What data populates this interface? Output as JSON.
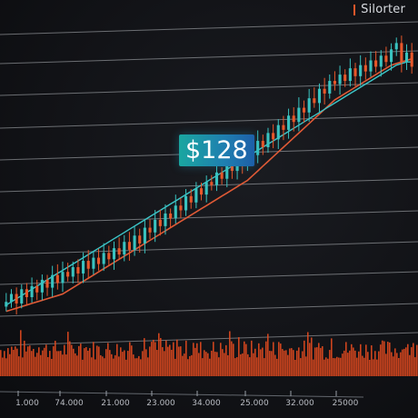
{
  "legend": {
    "label": "Silorter"
  },
  "price_tag": {
    "text": "$128"
  },
  "colors": {
    "up": "#39c3c0",
    "down": "#e8572a",
    "ma_fast": "#3cc6c9",
    "ma_slow": "#e05a36",
    "volume": "#e24a1f",
    "grid": "#d9dde3"
  },
  "chart_data": {
    "type": "candlestick",
    "title": "",
    "xlabel": "",
    "ylabel": "",
    "grid": true,
    "legend": {
      "placement": "top-right",
      "entries": [
        "Silorter"
      ]
    },
    "annotations": [
      "$128"
    ],
    "x_tick_labels": [
      "1.000",
      "74.000",
      "21.000",
      "23.000",
      "34.000",
      "25.000",
      "32.000",
      "25000"
    ],
    "candles_close": [
      36,
      41,
      35,
      44,
      39,
      46,
      42,
      50,
      45,
      53,
      48,
      55,
      52,
      58,
      54,
      62,
      57,
      64,
      60,
      67,
      63,
      70,
      66,
      74,
      69,
      78,
      73,
      83,
      80,
      88,
      84,
      92,
      89,
      97,
      94,
      103,
      99,
      108,
      104,
      112,
      110,
      118,
      114,
      122,
      119,
      128,
      124,
      133,
      129,
      138,
      134,
      143,
      139,
      148,
      145,
      154,
      150,
      159,
      156,
      165,
      162,
      171,
      168,
      176,
      174,
      180,
      176,
      184,
      179,
      186,
      182,
      189,
      185,
      192,
      188,
      196,
      200,
      188,
      194,
      185
    ],
    "ma_fast": [
      34,
      36,
      38,
      40,
      42,
      44,
      46,
      48,
      50,
      52,
      54,
      56,
      58,
      60,
      62,
      64,
      66,
      68,
      70,
      72,
      74,
      76,
      78,
      80,
      82,
      84,
      86,
      88,
      90,
      92,
      94,
      96,
      98,
      100,
      102,
      104,
      106,
      108,
      110,
      112,
      114,
      116,
      118,
      120,
      122,
      124,
      126,
      128,
      130,
      132,
      134,
      136,
      138,
      140,
      142,
      144,
      146,
      148,
      150,
      152,
      154,
      156,
      158,
      160,
      162,
      164,
      166,
      168,
      170,
      172,
      174,
      176,
      178,
      180,
      182,
      184,
      186,
      187,
      188,
      188
    ],
    "ma_slow": [
      30,
      31,
      32,
      33,
      34,
      35,
      36,
      37,
      38,
      39,
      40,
      41,
      43,
      45,
      47,
      49,
      51,
      53,
      55,
      57,
      59,
      61,
      63,
      65,
      67,
      69,
      71,
      73,
      75,
      77,
      79,
      81,
      83,
      85,
      87,
      89,
      91,
      93,
      95,
      97,
      99,
      101,
      103,
      105,
      107,
      109,
      111,
      113,
      116,
      119,
      122,
      125,
      128,
      131,
      134,
      137,
      140,
      143,
      146,
      149,
      152,
      155,
      158,
      161,
      164,
      166,
      168,
      170,
      172,
      174,
      176,
      178,
      180,
      182,
      184,
      186,
      187,
      188,
      189,
      190
    ],
    "y_range": [
      20,
      210
    ]
  }
}
